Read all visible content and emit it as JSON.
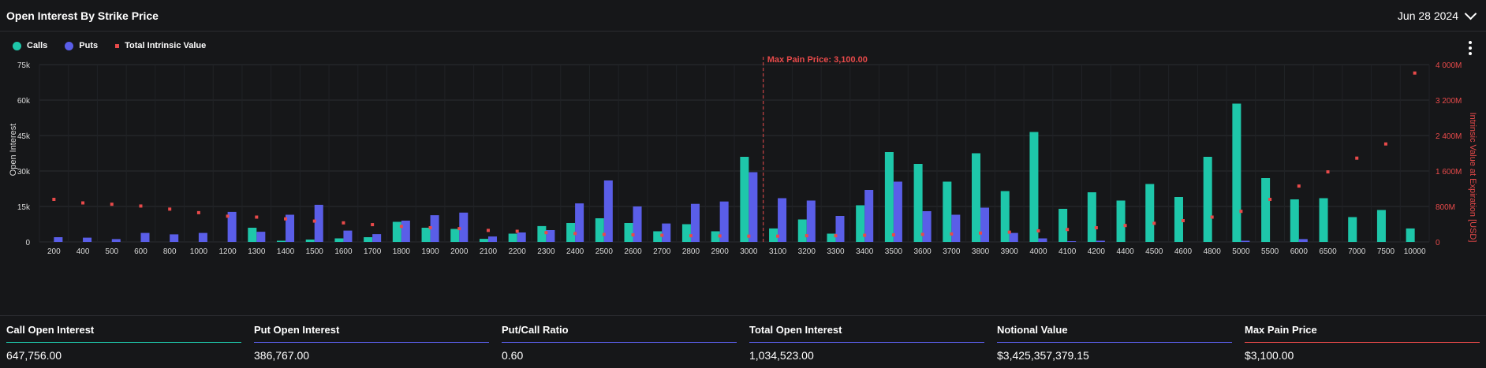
{
  "header": {
    "title": "Open Interest By Strike Price",
    "date": "Jun 28 2024"
  },
  "legend": [
    {
      "label": "Calls",
      "color": "#1ec7aa"
    },
    {
      "label": "Puts",
      "color": "#5a5ee8"
    },
    {
      "label": "Total Intrinsic Value",
      "color": "#e84a4a"
    }
  ],
  "stats": [
    {
      "label": "Call Open Interest",
      "value": "647,756.00",
      "color": "#1ec7aa"
    },
    {
      "label": "Put Open Interest",
      "value": "386,767.00",
      "color": "#5a5ee8"
    },
    {
      "label": "Put/Call Ratio",
      "value": "0.60",
      "color": "#5a5ee8"
    },
    {
      "label": "Total Open Interest",
      "value": "1,034,523.00",
      "color": "#5a5ee8"
    },
    {
      "label": "Notional Value",
      "value": "$3,425,357,379.15",
      "color": "#5a5ee8"
    },
    {
      "label": "Max Pain Price",
      "value": "$3,100.00",
      "color": "#e84a4a"
    }
  ],
  "chart_data": {
    "type": "bar",
    "categories": [
      "200",
      "400",
      "500",
      "600",
      "800",
      "1000",
      "1200",
      "1300",
      "1400",
      "1500",
      "1600",
      "1700",
      "1800",
      "1900",
      "2000",
      "2100",
      "2200",
      "2300",
      "2400",
      "2500",
      "2600",
      "2700",
      "2800",
      "2900",
      "3000",
      "3100",
      "3200",
      "3300",
      "3400",
      "3500",
      "3600",
      "3700",
      "3800",
      "3900",
      "4000",
      "4100",
      "4200",
      "4400",
      "4500",
      "4600",
      "4800",
      "5000",
      "5500",
      "6000",
      "6500",
      "7000",
      "7500",
      "10000"
    ],
    "series": [
      {
        "name": "Calls",
        "axis": "left",
        "color": "#1ec7aa",
        "values": [
          0,
          0,
          0,
          0,
          0,
          0,
          0,
          6000,
          500,
          1000,
          1500,
          2000,
          8500,
          6000,
          5500,
          1300,
          3500,
          6700,
          8000,
          10000,
          8000,
          4500,
          7500,
          4500,
          36000,
          5700,
          9500,
          3500,
          15500,
          38000,
          33000,
          25500,
          37500,
          21500,
          46500,
          14000,
          21000,
          17500,
          24500,
          19000,
          36000,
          58500,
          27000,
          18000,
          18500,
          10500,
          13500,
          5700
        ]
      },
      {
        "name": "Puts",
        "axis": "left",
        "color": "#5a5ee8",
        "values": [
          2000,
          1800,
          1200,
          3800,
          3200,
          3800,
          12700,
          4300,
          11500,
          15700,
          4800,
          3300,
          9000,
          11300,
          12400,
          2300,
          4000,
          5000,
          16300,
          26000,
          15000,
          7800,
          16100,
          17100,
          29500,
          18500,
          17500,
          11000,
          22000,
          25500,
          13000,
          11500,
          14500,
          3800,
          1500,
          300,
          500,
          0,
          0,
          0,
          0,
          500,
          0,
          1200,
          0,
          0,
          0,
          0
        ]
      },
      {
        "name": "Total Intrinsic Value",
        "axis": "right",
        "type": "scatter",
        "color": "#e84a4a",
        "values": [
          960,
          880,
          850,
          810,
          740,
          660,
          580,
          560,
          520,
          470,
          430,
          390,
          350,
          320,
          300,
          260,
          240,
          210,
          190,
          170,
          160,
          150,
          140,
          135,
          130,
          130,
          140,
          140,
          150,
          160,
          170,
          180,
          200,
          220,
          250,
          280,
          320,
          370,
          420,
          480,
          560,
          690,
          960,
          1260,
          1580,
          1890,
          2210,
          3810
        ]
      }
    ],
    "xlabel": "",
    "ylabel": "Open Interest",
    "y2label": "Intrinsic Value at Expiration [USD]",
    "ylim": [
      0,
      75000
    ],
    "yticks": [
      "0",
      "15k",
      "30k",
      "45k",
      "60k",
      "75k"
    ],
    "y2lim": [
      0,
      4000
    ],
    "y2ticks": [
      "0",
      "800M",
      "1 600M",
      "2 400M",
      "3 200M",
      "4 000M"
    ],
    "annotation": {
      "label": "Max Pain Price: 3,100.00",
      "category": "3100"
    },
    "grid": true,
    "legend_position": "top-left"
  }
}
